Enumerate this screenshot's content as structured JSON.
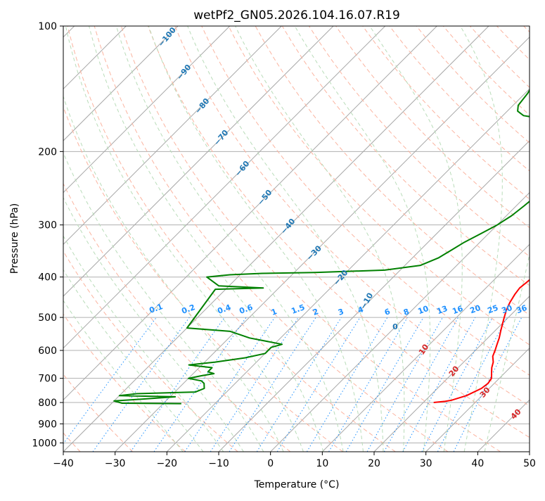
{
  "chart_data": {
    "type": "line",
    "subtype": "skew-t log-p diagram",
    "title": "wetPf2_GN05.2026.104.16.07.R19",
    "xlabel": "Temperature (°C)",
    "ylabel": "Pressure (hPa)",
    "xlim": [
      -40,
      50
    ],
    "ylim": [
      1050,
      100
    ],
    "y_scale": "log",
    "grid": true,
    "x_ticks": [
      -40,
      -30,
      -20,
      -10,
      0,
      10,
      20,
      30,
      40,
      50
    ],
    "x_tick_labels": [
      "−40",
      "−30",
      "−20",
      "−10",
      "0",
      "10",
      "20",
      "30",
      "40",
      "50"
    ],
    "y_ticks": [
      100,
      200,
      300,
      400,
      500,
      600,
      700,
      800,
      900,
      1000
    ],
    "y_tick_labels": [
      "100",
      "200",
      "300",
      "400",
      "500",
      "600",
      "700",
      "800",
      "900",
      "1000"
    ],
    "series": [
      {
        "role": "temperature",
        "color": "#ff0000",
        "points": [
          [
            800,
            22.0
          ],
          [
            795,
            24.0
          ],
          [
            790,
            25.0
          ],
          [
            770,
            27.0
          ],
          [
            740,
            28.5
          ],
          [
            720,
            28.8
          ],
          [
            700,
            28.5
          ],
          [
            680,
            27.5
          ],
          [
            660,
            26.5
          ],
          [
            640,
            25.7
          ],
          [
            620,
            24.5
          ],
          [
            600,
            23.8
          ],
          [
            580,
            23.0
          ],
          [
            560,
            22.2
          ],
          [
            540,
            21.2
          ],
          [
            520,
            20.2
          ],
          [
            500,
            19.2
          ],
          [
            480,
            18.2
          ],
          [
            460,
            17.4
          ],
          [
            440,
            16.8
          ],
          [
            425,
            16.5
          ],
          [
            410,
            16.8
          ],
          [
            395,
            17.0
          ],
          [
            380,
            16.0
          ],
          [
            360,
            14.0
          ],
          [
            340,
            11.8
          ],
          [
            320,
            9.5
          ],
          [
            300,
            7.5
          ],
          [
            280,
            5.5
          ],
          [
            260,
            3.5
          ],
          [
            240,
            1.5
          ],
          [
            220,
            -0.6
          ],
          [
            205,
            -2.3
          ],
          [
            190,
            -4.0
          ],
          [
            180,
            -5.5
          ],
          [
            172,
            -7.0
          ],
          [
            168,
            -7.3
          ],
          [
            160,
            -6.5
          ],
          [
            150,
            -4.5
          ],
          [
            140,
            -3.5
          ],
          [
            130,
            -4.0
          ],
          [
            120,
            -5.5
          ],
          [
            110,
            -6.3
          ],
          [
            100,
            -7.3
          ]
        ]
      },
      {
        "role": "dewpoint",
        "color": "#008000",
        "points": [
          [
            805,
            -26.5
          ],
          [
            803,
            -38.0
          ],
          [
            793,
            -40.0
          ],
          [
            785,
            -35.0
          ],
          [
            775,
            -29.0
          ],
          [
            770,
            -40.0
          ],
          [
            762,
            -37.0
          ],
          [
            755,
            -26.0
          ],
          [
            740,
            -25.0
          ],
          [
            720,
            -26.0
          ],
          [
            710,
            -27.0
          ],
          [
            700,
            -30.0
          ],
          [
            690,
            -28.0
          ],
          [
            682,
            -26.0
          ],
          [
            675,
            -27.5
          ],
          [
            660,
            -27.5
          ],
          [
            650,
            -32.5
          ],
          [
            640,
            -28.0
          ],
          [
            625,
            -23.0
          ],
          [
            610,
            -20.0
          ],
          [
            600,
            -20.0
          ],
          [
            590,
            -20.0
          ],
          [
            580,
            -18.5
          ],
          [
            560,
            -26.0
          ],
          [
            540,
            -31.0
          ],
          [
            530,
            -40.0
          ],
          [
            428,
            -42.0
          ],
          [
            425,
            -33.0
          ],
          [
            420,
            -42.0
          ],
          [
            400,
            -46.0
          ],
          [
            395,
            -42.0
          ],
          [
            392,
            -36.0
          ],
          [
            390,
            -26.0
          ],
          [
            385,
            -13.0
          ],
          [
            375,
            -7.0
          ],
          [
            360,
            -5.0
          ],
          [
            345,
            -4.0
          ],
          [
            330,
            -3.0
          ],
          [
            315,
            -1.5
          ],
          [
            300,
            0.0
          ],
          [
            285,
            1.0
          ],
          [
            270,
            1.5
          ],
          [
            260,
            1.8
          ],
          [
            245,
            3.0
          ],
          [
            230,
            2.2
          ],
          [
            215,
            1.5
          ],
          [
            205,
            0.5
          ],
          [
            195,
            -1.5
          ],
          [
            185,
            -4.0
          ],
          [
            175,
            -6.5
          ],
          [
            168,
            -10.0
          ],
          [
            164,
            -16.0
          ],
          [
            160,
            -18.0
          ],
          [
            155,
            -19.0
          ],
          [
            145,
            -19.5
          ],
          [
            140,
            -20.0
          ],
          [
            135,
            -19.5
          ],
          [
            125,
            -20.5
          ],
          [
            120,
            -21.0
          ],
          [
            110,
            -24.0
          ],
          [
            105,
            -20.0
          ],
          [
            100,
            -17.8
          ]
        ]
      }
    ],
    "annotation_groups": [
      {
        "role": "dry adiabats (°C)",
        "color": "#d62728",
        "labels": [
          "10",
          "20",
          "30",
          "40"
        ]
      },
      {
        "role": "moist adiabats (°C)",
        "color": "#1f77b4",
        "labels": [
          "−100",
          "−90",
          "−80",
          "−70",
          "−60",
          "−50",
          "−40",
          "−30",
          "−20",
          "−10",
          "0"
        ]
      },
      {
        "role": "mixing ratio (g/kg)",
        "color": "#1e90ff",
        "labels": [
          "0.1",
          "0.2",
          "0.4",
          "0.6",
          "1",
          "1.5",
          "2",
          "3",
          "4",
          "6",
          "8",
          "10",
          "13",
          "16",
          "20",
          "25",
          "30",
          "36"
        ]
      }
    ]
  }
}
